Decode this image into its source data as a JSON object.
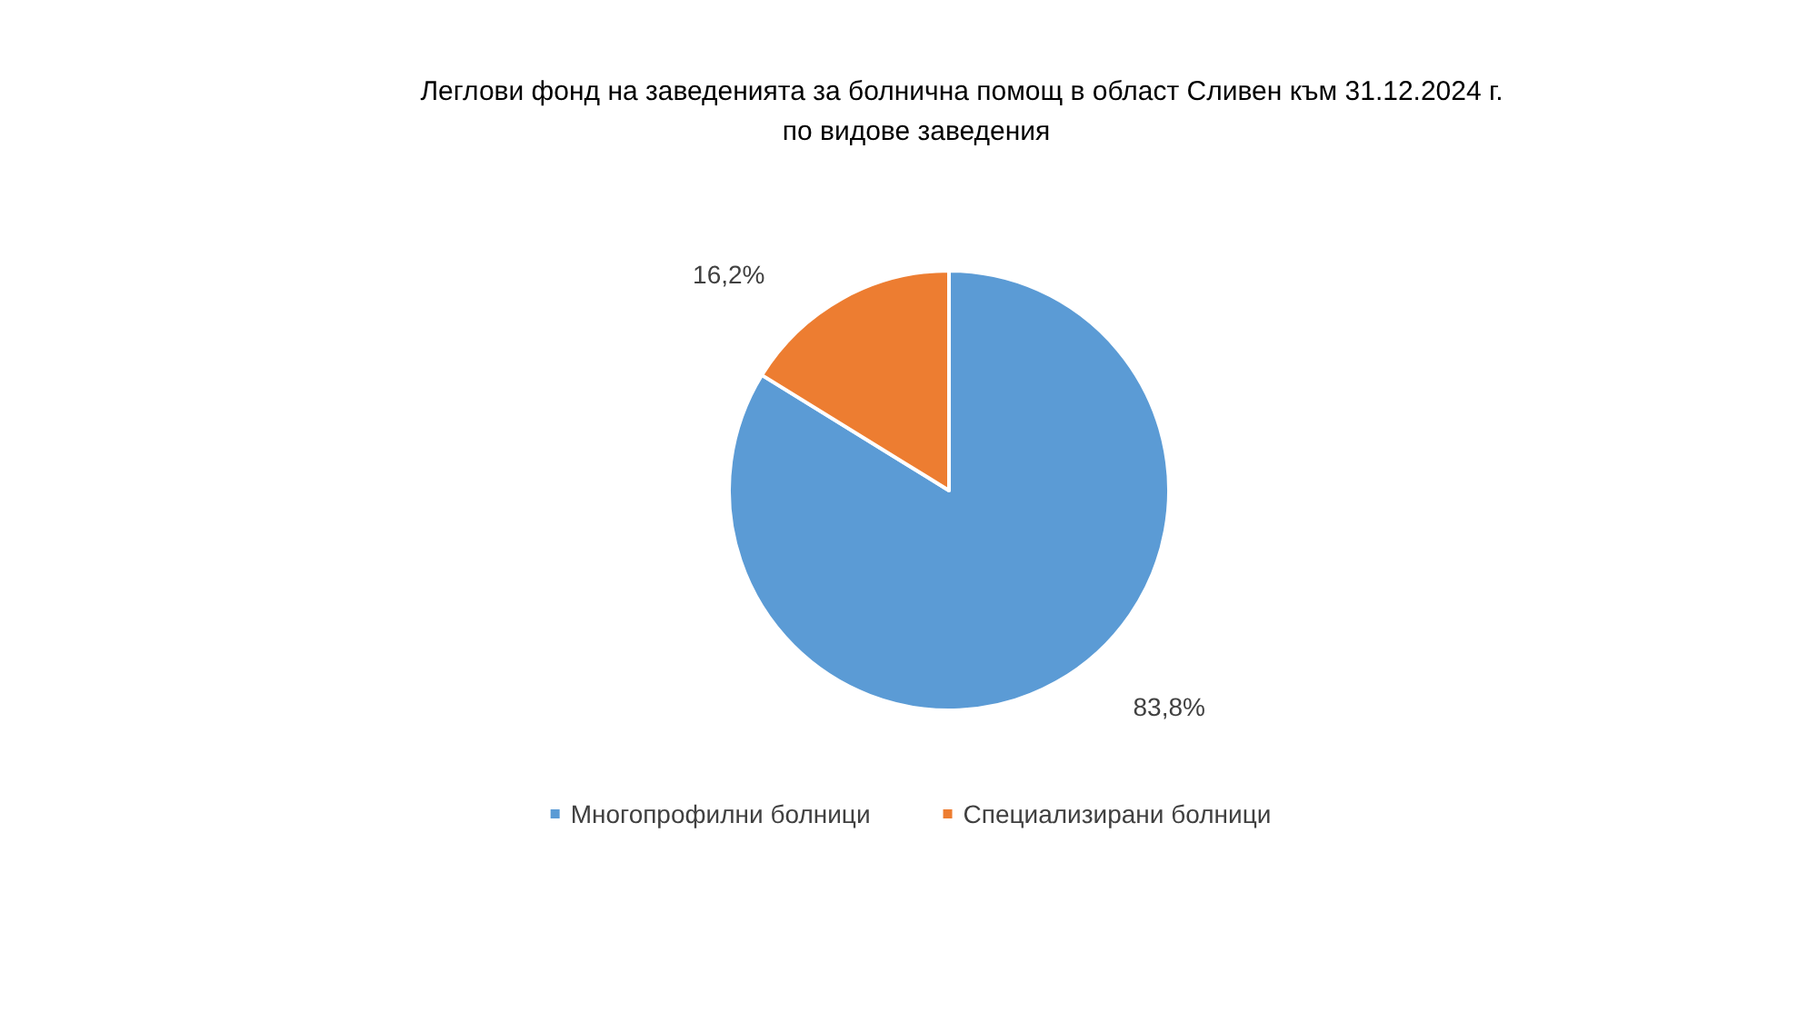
{
  "chart_data": {
    "type": "pie",
    "title": "Леглови фонд на заведенията за болнична помощ в област Сливен към 31.12.2024 г.",
    "subtitle": "по видове заведения",
    "categories": [
      "Многопрофилни болници",
      "Специализирани болници"
    ],
    "values": [
      83.8,
      16.2
    ],
    "colors": [
      "#5b9bd5",
      "#ed7d31"
    ],
    "value_labels": [
      "83,8%",
      "16,2%"
    ],
    "legend": "bottom"
  }
}
